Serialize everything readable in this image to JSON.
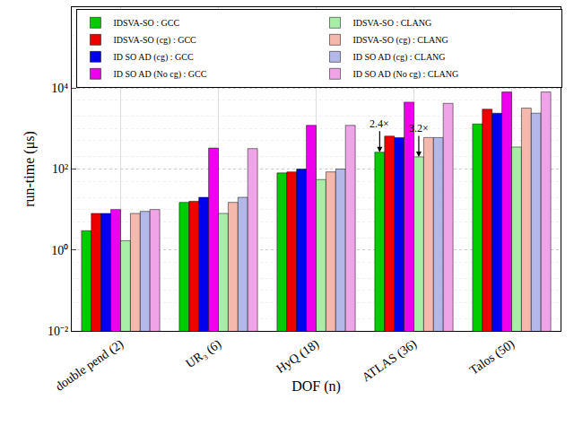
{
  "chart_data": {
    "type": "bar",
    "log": "y",
    "grid": true,
    "legend": "upper left",
    "x_label": "DOF (n)",
    "y_label": "run-time (μs)",
    "categories": [
      "double pend (2)",
      "UR₃ (6)",
      "HyQ (18)",
      "ATLAS (36)",
      "Talos (50)"
    ],
    "series": [
      {
        "name": "IDSVA-SO : GCC",
        "color": "#00cc00",
        "values": [
          3,
          15,
          80,
          260,
          1300
        ]
      },
      {
        "name": "IDSVA-SO (cg) : GCC",
        "color": "#ee0000",
        "values": [
          8,
          16,
          85,
          650,
          3000
        ]
      },
      {
        "name": "ID SO AD (cg) : GCC",
        "color": "#0000ee",
        "values": [
          8,
          20,
          100,
          600,
          2400
        ]
      },
      {
        "name": "ID SO AD (No cg) : GCC",
        "color": "#ee00ee",
        "values": [
          10,
          330,
          1200,
          4500,
          8000
        ]
      },
      {
        "name": "IDSVA-SO : CLANG",
        "color": "#a8eea8",
        "values": [
          1.7,
          8,
          55,
          200,
          350
        ]
      },
      {
        "name": "IDSVA-SO (cg) : CLANG",
        "color": "#f4b8ac",
        "values": [
          8,
          15,
          85,
          600,
          3200
        ]
      },
      {
        "name": "ID SO AD (cg) : CLANG",
        "color": "#b4b8e8",
        "values": [
          9,
          20,
          100,
          600,
          2400
        ]
      },
      {
        "name": "ID SO AD (No cg) : CLANG",
        "color": "#f0a4e8",
        "values": [
          10,
          320,
          1200,
          4200,
          8000
        ]
      }
    ],
    "ylim": [
      0.01,
      1000000
    ],
    "yticks": [
      {
        "value": 0.01,
        "label": "10⁻²"
      },
      {
        "value": 1,
        "label": "10⁰"
      },
      {
        "value": 100,
        "label": "10²"
      },
      {
        "value": 10000,
        "label": "10⁴"
      }
    ],
    "annotations": [
      {
        "text": "2.4×",
        "category": "ATLAS (36)",
        "series": "IDSVA-SO : GCC",
        "y": 260
      },
      {
        "text": "3.2×",
        "category": "ATLAS (36)",
        "series": "IDSVA-SO : CLANG",
        "y": 200
      }
    ]
  }
}
